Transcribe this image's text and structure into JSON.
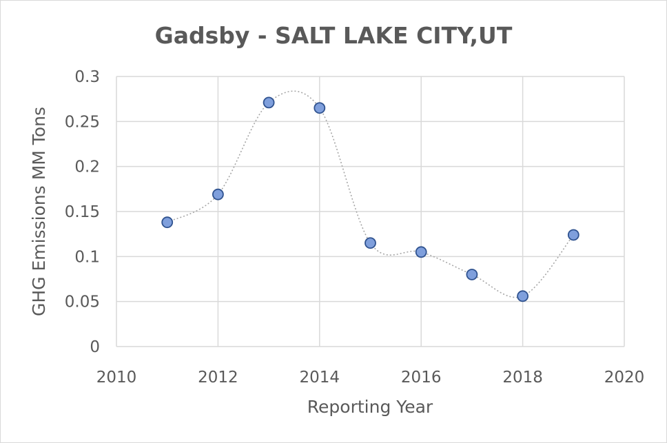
{
  "chart_data": {
    "type": "scatter",
    "title": "Gadsby - SALT LAKE CITY,UT",
    "xlabel": "Reporting Year",
    "ylabel": "GHG Emissions MM Tons",
    "xlim": [
      2010,
      2020
    ],
    "ylim": [
      0,
      0.3
    ],
    "x_ticks": [
      "2010",
      "2012",
      "2014",
      "2016",
      "2018",
      "2020"
    ],
    "y_ticks": [
      "0",
      "0.05",
      "0.1",
      "0.15",
      "0.2",
      "0.25",
      "0.3"
    ],
    "grid": true,
    "smoothed_line": true,
    "marker_color": "#7f9fdc",
    "marker_edge_color": "#2f528f",
    "line_color": "#a6a6a6",
    "series": [
      {
        "x": [
          2011,
          2012,
          2013,
          2014,
          2015,
          2016,
          2017,
          2018,
          2019
        ],
        "y": [
          0.138,
          0.169,
          0.271,
          0.265,
          0.115,
          0.105,
          0.08,
          0.056,
          0.124
        ]
      }
    ]
  }
}
